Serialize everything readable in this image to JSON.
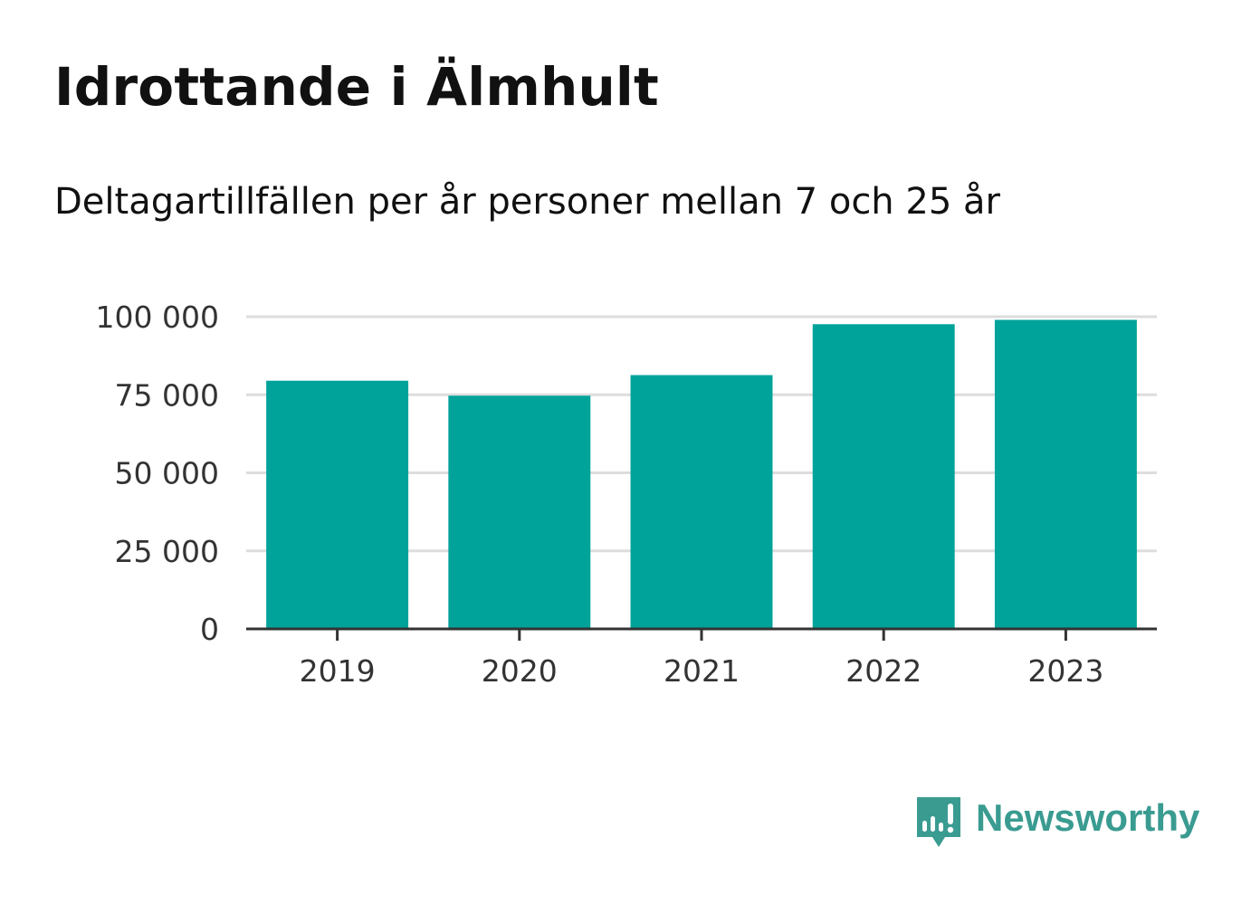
{
  "header": {
    "title": "Idrottande i Älmhult",
    "subtitle": "Deltagartillfällen per år personer mellan 7 och 25 år"
  },
  "chart_data": {
    "type": "bar",
    "categories": [
      "2019",
      "2020",
      "2021",
      "2022",
      "2023"
    ],
    "values": [
      79500,
      74700,
      81300,
      97600,
      99000
    ],
    "ylim": [
      0,
      100000
    ],
    "yticks": [
      0,
      25000,
      50000,
      75000,
      100000
    ],
    "ytick_labels": [
      "0",
      "25 000",
      "50 000",
      "75 000",
      "100 000"
    ],
    "grid": true,
    "bar_color": "#00a39a"
  },
  "brand": {
    "name": "Newsworthy",
    "color": "#3a9b91",
    "icon": "newsworthy-logo-icon"
  }
}
